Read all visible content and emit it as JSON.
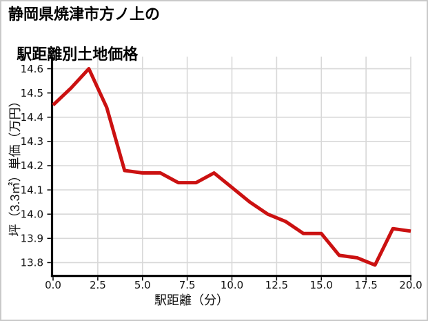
{
  "page": {
    "background": "#ffffff",
    "border_color": "#c9c9c9"
  },
  "chart_data": {
    "type": "line",
    "title": "静岡県焼津市方ノ上の駅距離別土地価格",
    "title_lines": [
      "静岡県焼津市方ノ上の",
      "駅距離別土地価格"
    ],
    "xlabel": "駅距離（分）",
    "ylabel": "坪（3.3㎡）単価（万円）",
    "x": [
      0,
      1,
      2,
      3,
      4,
      5,
      6,
      7,
      8,
      9,
      10,
      11,
      12,
      13,
      14,
      15,
      16,
      17,
      18,
      19,
      20
    ],
    "values": [
      14.45,
      14.52,
      14.6,
      14.44,
      14.18,
      14.17,
      14.17,
      14.13,
      14.13,
      14.17,
      14.11,
      14.05,
      14.0,
      13.97,
      13.92,
      13.92,
      13.83,
      13.82,
      13.79,
      13.94,
      13.93
    ],
    "xlim": [
      0,
      20
    ],
    "ylim": [
      13.75,
      14.65
    ],
    "x_ticks": [
      "0.0",
      "2.5",
      "5.0",
      "7.5",
      "10.0",
      "12.5",
      "15.0",
      "17.5",
      "20.0"
    ],
    "y_ticks": [
      "13.8",
      "13.9",
      "14.0",
      "14.1",
      "14.2",
      "14.3",
      "14.4",
      "14.5",
      "14.6"
    ],
    "grid": true,
    "legend": "none",
    "colors": {
      "line": "#cb1111",
      "grid": "#d8d8d8",
      "axis": "#000000",
      "text": "#111111"
    }
  }
}
